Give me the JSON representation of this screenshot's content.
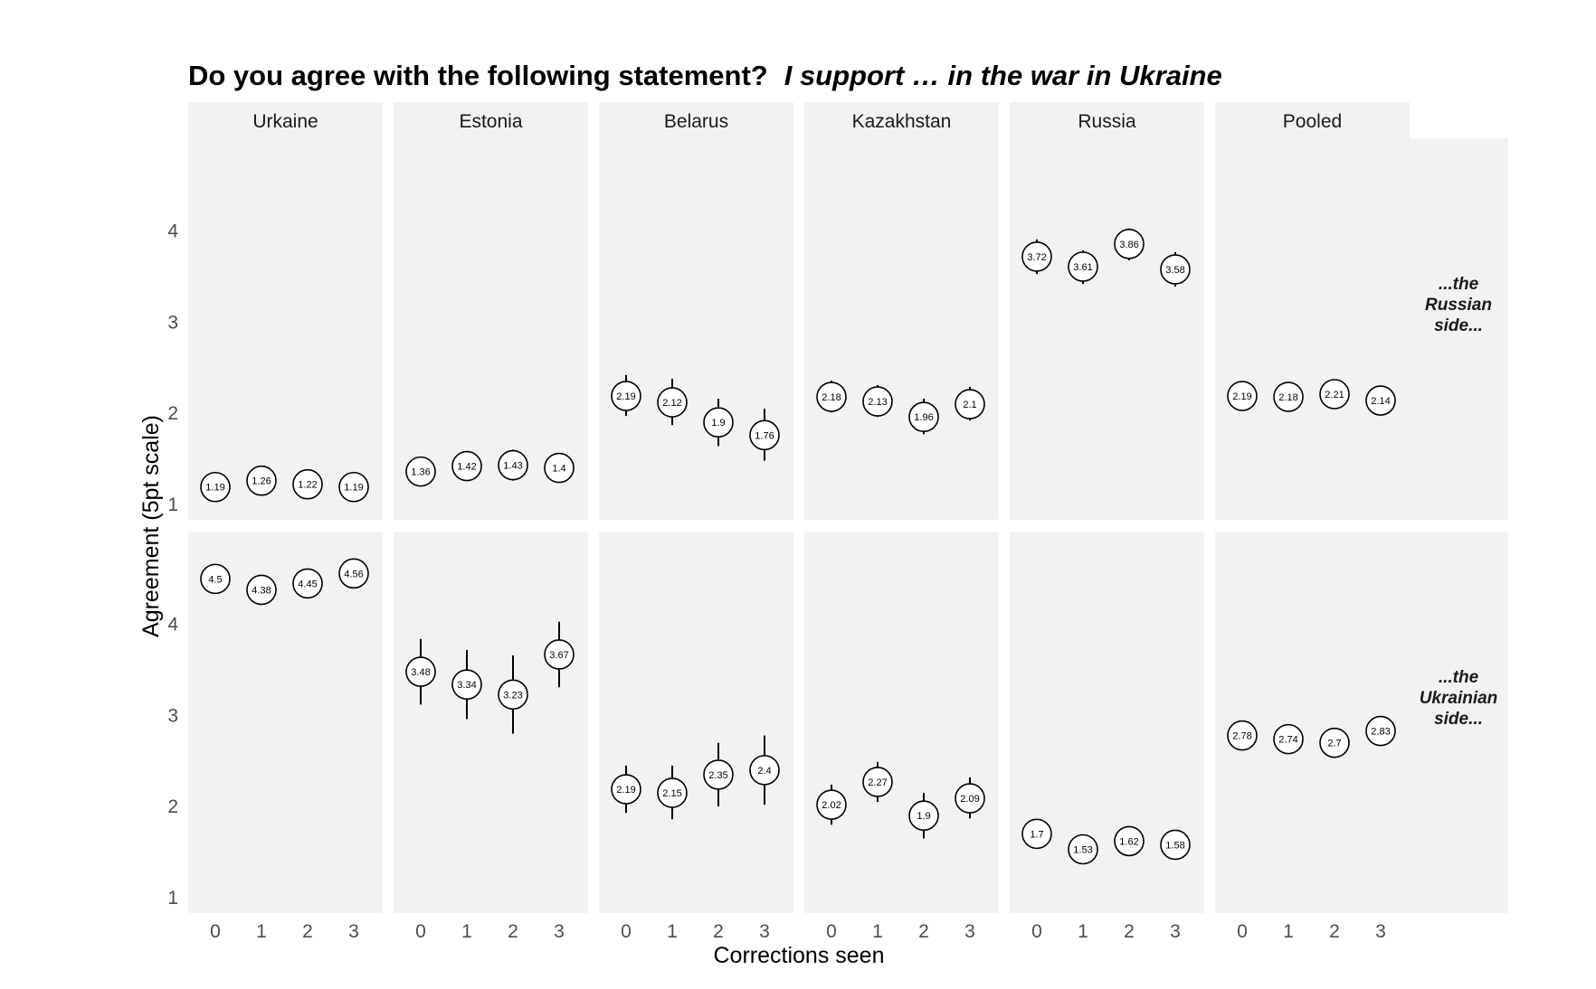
{
  "title": {
    "main": "Do you agree with the following statement?",
    "italic": "I support … in the war in Ukraine"
  },
  "colors": {
    "panel_background": "#f2f2f2",
    "point_stroke": "#000000",
    "point_fill": "#ffffff",
    "tick_text": "#4d4d4d"
  },
  "chart_data": {
    "type": "scatter",
    "xlabel": "Corrections seen",
    "ylabel": "Agreement (5pt scale)",
    "x": [
      0,
      1,
      2,
      3
    ],
    "xticks": [
      "0",
      "1",
      "2",
      "3"
    ],
    "yticks": [
      "1",
      "2",
      "3",
      "4"
    ],
    "ylim": [
      0.83,
      5.02
    ],
    "grid": false,
    "legend": "none",
    "facets_columns": [
      "Urkaine",
      "Estonia",
      "Belarus",
      "Kazakhstan",
      "Russia",
      "Pooled"
    ],
    "facets_rows": [
      {
        "label": [
          "...the",
          "Russian",
          "side..."
        ],
        "series": [
          {
            "panel": "Urkaine",
            "values": [
              1.19,
              1.26,
              1.22,
              1.19
            ],
            "ci": [
              [
                1.17,
                1.21
              ],
              [
                1.24,
                1.28
              ],
              [
                1.2,
                1.24
              ],
              [
                1.17,
                1.21
              ]
            ]
          },
          {
            "panel": "Estonia",
            "values": [
              1.36,
              1.42,
              1.43,
              1.4
            ],
            "ci": [
              [
                1.21,
                1.51
              ],
              [
                1.27,
                1.58
              ],
              [
                1.26,
                1.6
              ],
              [
                1.25,
                1.55
              ]
            ]
          },
          {
            "panel": "Belarus",
            "values": [
              2.19,
              2.12,
              1.9,
              1.76
            ],
            "ci": [
              [
                1.97,
                2.42
              ],
              [
                1.87,
                2.38
              ],
              [
                1.64,
                2.16
              ],
              [
                1.48,
                2.05
              ]
            ]
          },
          {
            "panel": "Kazakhstan",
            "values": [
              2.18,
              2.13,
              1.96,
              2.1
            ],
            "ci": [
              [
                2.01,
                2.36
              ],
              [
                1.96,
                2.31
              ],
              [
                1.77,
                2.16
              ],
              [
                1.92,
                2.29
              ]
            ]
          },
          {
            "panel": "Russia",
            "values": [
              3.72,
              3.61,
              3.86,
              3.58
            ],
            "ci": [
              [
                3.53,
                3.91
              ],
              [
                3.42,
                3.79
              ],
              [
                3.68,
                4.03
              ],
              [
                3.39,
                3.77
              ]
            ]
          },
          {
            "panel": "Pooled",
            "values": [
              2.19,
              2.18,
              2.21,
              2.14
            ],
            "ci": [
              [
                2.13,
                2.25
              ],
              [
                2.12,
                2.24
              ],
              [
                2.15,
                2.27
              ],
              [
                2.08,
                2.2
              ]
            ]
          }
        ]
      },
      {
        "label": [
          "...the",
          "Ukrainian",
          "side..."
        ],
        "series": [
          {
            "panel": "Urkaine",
            "values": [
              4.5,
              4.38,
              4.45,
              4.56
            ],
            "ci": [
              [
                4.46,
                4.54
              ],
              [
                4.32,
                4.44
              ],
              [
                4.39,
                4.51
              ],
              [
                4.52,
                4.6
              ]
            ]
          },
          {
            "panel": "Estonia",
            "values": [
              3.48,
              3.34,
              3.23,
              3.67
            ],
            "ci": [
              [
                3.12,
                3.84
              ],
              [
                2.96,
                3.72
              ],
              [
                2.8,
                3.66
              ],
              [
                3.31,
                4.03
              ]
            ]
          },
          {
            "panel": "Belarus",
            "values": [
              2.19,
              2.15,
              2.35,
              2.4
            ],
            "ci": [
              [
                1.93,
                2.45
              ],
              [
                1.86,
                2.45
              ],
              [
                2.0,
                2.7
              ],
              [
                2.02,
                2.78
              ]
            ]
          },
          {
            "panel": "Kazakhstan",
            "values": [
              2.02,
              2.27,
              1.9,
              2.09
            ],
            "ci": [
              [
                1.8,
                2.24
              ],
              [
                2.05,
                2.49
              ],
              [
                1.65,
                2.15
              ],
              [
                1.87,
                2.32
              ]
            ]
          },
          {
            "panel": "Russia",
            "values": [
              1.7,
              1.53,
              1.62,
              1.58
            ],
            "ci": [
              [
                1.55,
                1.84
              ],
              [
                1.4,
                1.66
              ],
              [
                1.48,
                1.76
              ],
              [
                1.46,
                1.7
              ]
            ]
          },
          {
            "panel": "Pooled",
            "values": [
              2.78,
              2.74,
              2.7,
              2.83
            ],
            "ci": [
              [
                2.71,
                2.85
              ],
              [
                2.67,
                2.81
              ],
              [
                2.63,
                2.77
              ],
              [
                2.76,
                2.9
              ]
            ]
          }
        ]
      }
    ]
  }
}
